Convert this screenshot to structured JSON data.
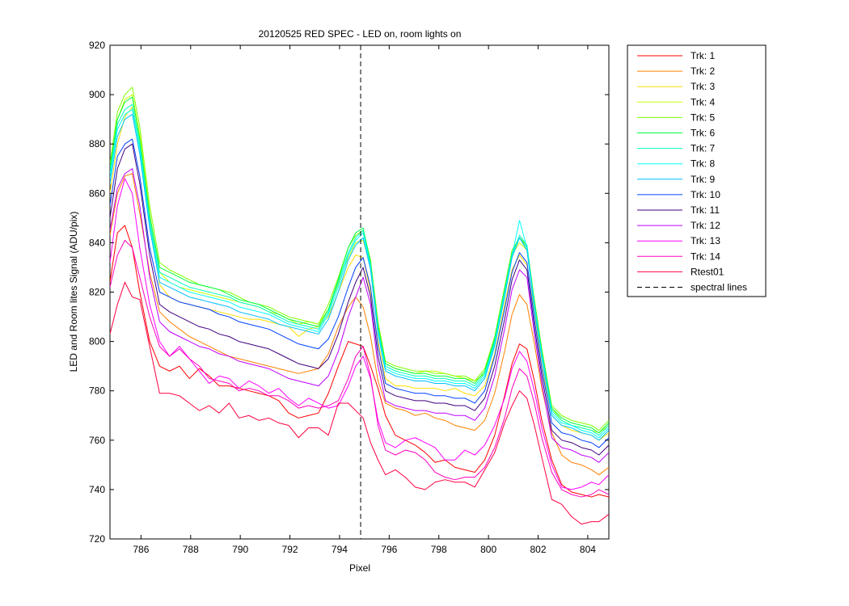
{
  "chart_data": {
    "type": "line",
    "title": "20120525 RED SPEC - LED on, room lights on",
    "xlabel": "Pixel",
    "ylabel": "LED and Room lites Signal (ADU/pix)",
    "xlim": [
      784.75,
      804.85
    ],
    "ylim": [
      720,
      920
    ],
    "xticks": [
      786,
      788,
      790,
      792,
      794,
      796,
      798,
      800,
      802,
      804
    ],
    "yticks": [
      720,
      740,
      760,
      780,
      800,
      820,
      840,
      860,
      880,
      900,
      920
    ],
    "grid": false,
    "legend_position": "outside-right",
    "x": [
      784.75,
      785.05,
      785.35,
      785.65,
      785.95,
      786.35,
      786.75,
      787.15,
      787.55,
      787.95,
      788.35,
      788.75,
      789.15,
      789.55,
      789.95,
      790.35,
      790.75,
      791.15,
      791.55,
      791.95,
      792.35,
      792.75,
      793.15,
      793.55,
      793.95,
      794.35,
      794.65,
      794.95,
      795.25,
      795.55,
      795.85,
      796.25,
      796.65,
      797.05,
      797.45,
      797.85,
      798.25,
      798.65,
      799.05,
      799.45,
      799.85,
      800.25,
      800.65,
      800.95,
      801.25,
      801.55,
      801.85,
      802.15,
      802.55,
      802.95,
      803.35,
      803.75,
      804.15,
      804.45,
      804.85
    ],
    "series": [
      {
        "name": "Trk: 1",
        "color": "#ff0000",
        "values": [
          824,
          844,
          847,
          838,
          820,
          800,
          790,
          788,
          790,
          785,
          789,
          786,
          782,
          782,
          781,
          780,
          779,
          778,
          776,
          771,
          769,
          770,
          771,
          779,
          790,
          800,
          799,
          798,
          790,
          781,
          770,
          762,
          760,
          758,
          755,
          751,
          752,
          749,
          748,
          747,
          752,
          762,
          778,
          791,
          799,
          797,
          784,
          768,
          752,
          742,
          739,
          738,
          737,
          738,
          737
        ]
      },
      {
        "name": "Trk: 2",
        "color": "#ff8000",
        "values": [
          843,
          860,
          867,
          868,
          852,
          828,
          812,
          808,
          805,
          802,
          800,
          798,
          796,
          794,
          793,
          792,
          791,
          790,
          789,
          788,
          787,
          788,
          789,
          795,
          806,
          814,
          818,
          814,
          802,
          784,
          775,
          773,
          772,
          770,
          771,
          769,
          768,
          766,
          765,
          764,
          768,
          779,
          796,
          811,
          819,
          815,
          799,
          781,
          763,
          754,
          751,
          750,
          748,
          746,
          749
        ]
      },
      {
        "name": "Trk: 3",
        "color": "#ffdd00",
        "values": [
          860,
          880,
          891,
          895,
          879,
          849,
          823,
          818,
          816,
          815,
          814,
          813,
          812,
          811,
          810,
          809,
          809,
          808,
          807,
          806,
          802,
          805,
          806,
          810,
          820,
          830,
          835,
          834,
          820,
          800,
          785,
          782,
          782,
          781,
          781,
          781,
          780,
          781,
          779,
          778,
          782,
          795,
          815,
          829,
          835,
          831,
          812,
          790,
          770,
          766,
          764,
          763,
          762,
          760,
          763
        ]
      },
      {
        "name": "Trk: 4",
        "color": "#c8ff00",
        "values": [
          870,
          890,
          898,
          900,
          884,
          852,
          828,
          824,
          822,
          821,
          820,
          819,
          818,
          817,
          816,
          815,
          814,
          812,
          811,
          809,
          807,
          808,
          807,
          813,
          823,
          834,
          840,
          841,
          830,
          806,
          791,
          789,
          788,
          787,
          788,
          788,
          787,
          786,
          785,
          784,
          787,
          800,
          820,
          835,
          840,
          837,
          815,
          795,
          773,
          768,
          766,
          765,
          764,
          763,
          766
        ]
      },
      {
        "name": "Trk: 5",
        "color": "#80ff00",
        "values": [
          872,
          893,
          900,
          903,
          887,
          855,
          832,
          829,
          827,
          825,
          823,
          822,
          821,
          820,
          818,
          816,
          815,
          814,
          812,
          810,
          809,
          808,
          807,
          815,
          826,
          838,
          843,
          845,
          833,
          808,
          792,
          790,
          789,
          788,
          788,
          787,
          787,
          786,
          786,
          784,
          789,
          802,
          822,
          837,
          842,
          839,
          817,
          797,
          774,
          770,
          768,
          767,
          766,
          764,
          768
        ]
      },
      {
        "name": "Trk: 6",
        "color": "#00ff40",
        "values": [
          870,
          890,
          897,
          899,
          882,
          851,
          830,
          828,
          826,
          824,
          823,
          822,
          821,
          819,
          817,
          816,
          815,
          813,
          811,
          809,
          808,
          807,
          806,
          813,
          825,
          838,
          844,
          846,
          832,
          806,
          791,
          789,
          788,
          787,
          787,
          786,
          786,
          785,
          785,
          783,
          788,
          801,
          821,
          836,
          842,
          838,
          816,
          796,
          773,
          769,
          767,
          766,
          765,
          763,
          767
        ]
      },
      {
        "name": "Trk: 7",
        "color": "#00ffbf",
        "values": [
          868,
          888,
          894,
          896,
          880,
          849,
          828,
          826,
          824,
          822,
          821,
          820,
          819,
          818,
          816,
          815,
          814,
          812,
          810,
          808,
          807,
          806,
          805,
          812,
          824,
          836,
          842,
          845,
          831,
          805,
          790,
          788,
          787,
          786,
          786,
          785,
          785,
          784,
          784,
          782,
          787,
          800,
          820,
          835,
          843,
          839,
          815,
          795,
          772,
          768,
          766,
          765,
          764,
          762,
          766
        ]
      },
      {
        "name": "Trk: 8",
        "color": "#00ffff",
        "values": [
          866,
          886,
          892,
          894,
          878,
          847,
          826,
          824,
          822,
          820,
          819,
          818,
          817,
          816,
          814,
          813,
          812,
          811,
          809,
          807,
          806,
          805,
          804,
          811,
          822,
          835,
          841,
          844,
          830,
          804,
          789,
          787,
          786,
          785,
          785,
          784,
          784,
          783,
          783,
          781,
          786,
          799,
          819,
          835,
          849,
          838,
          814,
          794,
          771,
          767,
          766,
          764,
          763,
          761,
          765
        ]
      },
      {
        "name": "Trk: 9",
        "color": "#00bfff",
        "values": [
          864,
          883,
          890,
          892,
          876,
          846,
          824,
          822,
          820,
          818,
          817,
          816,
          815,
          814,
          812,
          811,
          810,
          809,
          807,
          806,
          805,
          804,
          803,
          809,
          820,
          833,
          839,
          842,
          829,
          803,
          788,
          786,
          785,
          784,
          784,
          783,
          783,
          782,
          782,
          780,
          785,
          798,
          818,
          834,
          842,
          837,
          813,
          793,
          770,
          766,
          765,
          763,
          762,
          760,
          764
        ]
      },
      {
        "name": "Trk: 10",
        "color": "#0040ff",
        "values": [
          855,
          875,
          880,
          882,
          867,
          838,
          820,
          818,
          816,
          815,
          814,
          813,
          811,
          810,
          808,
          807,
          806,
          805,
          803,
          801,
          799,
          798,
          797,
          801,
          810,
          822,
          830,
          834,
          822,
          798,
          783,
          781,
          780,
          779,
          779,
          778,
          778,
          777,
          777,
          775,
          780,
          794,
          813,
          828,
          836,
          832,
          809,
          789,
          767,
          763,
          762,
          760,
          759,
          757,
          761
        ]
      },
      {
        "name": "Trk: 11",
        "color": "#400080",
        "values": [
          850,
          870,
          878,
          880,
          864,
          835,
          815,
          812,
          810,
          808,
          806,
          805,
          803,
          802,
          800,
          799,
          798,
          797,
          795,
          793,
          791,
          790,
          789,
          793,
          803,
          816,
          824,
          830,
          818,
          794,
          780,
          778,
          777,
          776,
          776,
          775,
          775,
          774,
          774,
          772,
          777,
          790,
          809,
          825,
          833,
          829,
          806,
          786,
          764,
          760,
          759,
          757,
          756,
          754,
          758
        ]
      },
      {
        "name": "Trk: 12",
        "color": "#bf00ff",
        "values": [
          845,
          862,
          868,
          870,
          855,
          826,
          808,
          804,
          802,
          800,
          798,
          797,
          795,
          794,
          792,
          791,
          790,
          789,
          787,
          785,
          784,
          783,
          782,
          786,
          796,
          810,
          818,
          826,
          815,
          790,
          776,
          774,
          773,
          772,
          772,
          771,
          771,
          770,
          770,
          768,
          773,
          786,
          805,
          821,
          829,
          826,
          803,
          783,
          761,
          757,
          756,
          754,
          753,
          751,
          755
        ]
      },
      {
        "name": "Trk: 13",
        "color": "#ff00ff",
        "values": [
          832,
          855,
          866,
          860,
          838,
          815,
          800,
          794,
          798,
          793,
          788,
          783,
          786,
          785,
          781,
          784,
          782,
          779,
          781,
          777,
          774,
          777,
          775,
          773,
          774,
          782,
          790,
          794,
          785,
          768,
          759,
          757,
          760,
          761,
          759,
          757,
          752,
          752,
          756,
          754,
          758,
          766,
          777,
          789,
          796,
          792,
          780,
          765,
          750,
          741,
          740,
          741,
          743,
          742,
          746
        ]
      },
      {
        "name": "Trk: 14",
        "color": "#ff00bf",
        "values": [
          822,
          835,
          841,
          838,
          826,
          810,
          798,
          794,
          797,
          793,
          790,
          785,
          784,
          783,
          780,
          781,
          780,
          778,
          778,
          776,
          773,
          774,
          773,
          774,
          776,
          785,
          794,
          798,
          786,
          766,
          756,
          754,
          756,
          755,
          752,
          747,
          745,
          744,
          745,
          745,
          749,
          757,
          769,
          781,
          789,
          786,
          775,
          761,
          747,
          740,
          738,
          737,
          738,
          740,
          738
        ]
      },
      {
        "name": "Rtest01",
        "color": "#ff0040",
        "values": [
          803,
          815,
          824,
          818,
          817,
          798,
          779,
          779,
          778,
          775,
          772,
          774,
          771,
          775,
          769,
          770,
          768,
          769,
          767,
          766,
          761,
          765,
          765,
          762,
          775,
          775,
          772,
          769,
          759,
          752,
          746,
          748,
          745,
          741,
          740,
          743,
          744,
          743,
          743,
          741,
          748,
          755,
          767,
          774,
          780,
          777,
          766,
          753,
          736,
          734,
          729,
          726,
          727,
          727,
          730
        ]
      }
    ],
    "spectral_line": {
      "name": "spectral lines",
      "x": 794.85,
      "color": "#000000"
    }
  }
}
